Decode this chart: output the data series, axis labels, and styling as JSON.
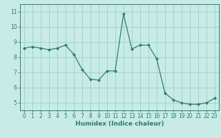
{
  "x": [
    0,
    1,
    2,
    3,
    4,
    5,
    6,
    7,
    8,
    9,
    10,
    11,
    12,
    13,
    14,
    15,
    16,
    17,
    18,
    19,
    20,
    21,
    22,
    23
  ],
  "y": [
    8.6,
    8.7,
    8.6,
    8.5,
    8.6,
    8.8,
    8.2,
    7.2,
    6.55,
    6.5,
    7.1,
    7.1,
    10.85,
    8.55,
    8.8,
    8.8,
    7.9,
    5.65,
    5.2,
    5.0,
    4.9,
    4.9,
    5.0,
    5.3
  ],
  "line_color": "#2d7d6e",
  "marker": "D",
  "marker_size": 2.0,
  "bg_color": "#c8ebe8",
  "grid_color": "#a0d4ce",
  "xlabel": "Humidex (Indice chaleur)",
  "ylim": [
    4.5,
    11.5
  ],
  "xlim": [
    -0.5,
    23.5
  ],
  "yticks": [
    5,
    6,
    7,
    8,
    9,
    10,
    11
  ],
  "xticks": [
    0,
    1,
    2,
    3,
    4,
    5,
    6,
    7,
    8,
    9,
    10,
    11,
    12,
    13,
    14,
    15,
    16,
    17,
    18,
    19,
    20,
    21,
    22,
    23
  ],
  "tick_color": "#2d7d6e",
  "label_color": "#2d7d6e",
  "axis_color": "#2d7d6e",
  "tick_fontsize": 5.5,
  "xlabel_fontsize": 6.5,
  "linewidth": 0.9
}
